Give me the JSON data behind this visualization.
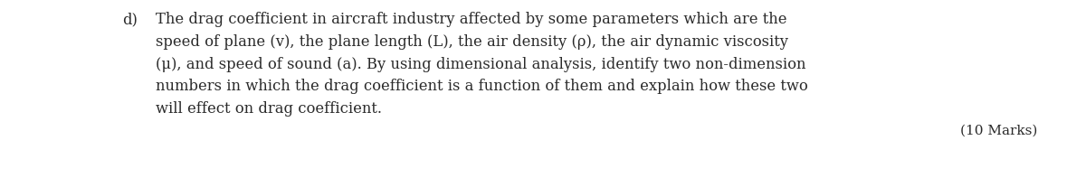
{
  "background_color": "#ffffff",
  "label": "d)",
  "text_lines": [
    "The drag coefficient in aircraft industry affected by some parameters which are the",
    "speed of plane (v), the plane length (L), the air density (ρ), the air dynamic viscosity",
    "(μ), and speed of sound (a). By using dimensional analysis, identify two non-dimension",
    "numbers in which the drag coefficient is a function of them and explain how these two",
    "will effect on drag coefficient."
  ],
  "footnote": "(10 Marks)",
  "font_family": "DejaVu Serif",
  "font_size": 11.8,
  "label_font_size": 11.8,
  "footnote_font_size": 11.0,
  "text_color": "#2a2a2a",
  "fig_width": 12.0,
  "fig_height": 1.97,
  "fig_dpi": 100
}
